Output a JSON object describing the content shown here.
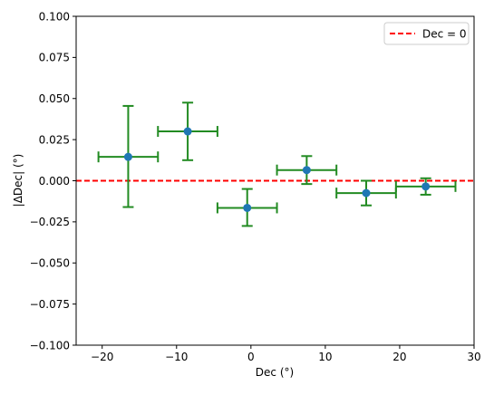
{
  "chart_data": {
    "type": "scatter",
    "title": "",
    "xlabel": "Dec (°)",
    "ylabel": "|ΔDec| (°)",
    "xlim": [
      -23.5,
      30
    ],
    "ylim": [
      -0.1,
      0.1
    ],
    "xticks": [
      -20,
      -10,
      0,
      10,
      20,
      30
    ],
    "xtick_labels": [
      "−20",
      "−10",
      "0",
      "10",
      "20",
      "30"
    ],
    "yticks": [
      -0.1,
      -0.075,
      -0.05,
      -0.025,
      0.0,
      0.025,
      0.05,
      0.075,
      0.1
    ],
    "ytick_labels": [
      "−0.100",
      "−0.075",
      "−0.050",
      "−0.025",
      "0.000",
      "0.025",
      "0.050",
      "0.075",
      "0.100"
    ],
    "grid": false,
    "legend": {
      "location": "upper right",
      "entries": [
        "Dec = 0"
      ]
    },
    "reference_line": {
      "y": 0,
      "label": "Dec = 0",
      "color": "#ff0000",
      "style": "dashed"
    },
    "series": [
      {
        "marker_color": "#1f77b4",
        "errorbar_color": "#228b22",
        "points": [
          {
            "x": -16.5,
            "y": 0.0145,
            "xerr": 4.0,
            "yerr_low": 0.0305,
            "yerr_high": 0.031
          },
          {
            "x": -8.5,
            "y": 0.03,
            "xerr": 4.0,
            "yerr_low": 0.0175,
            "yerr_high": 0.0175
          },
          {
            "x": -0.5,
            "y": -0.0165,
            "xerr": 4.0,
            "yerr_low": 0.011,
            "yerr_high": 0.0115
          },
          {
            "x": 7.5,
            "y": 0.0065,
            "xerr": 4.0,
            "yerr_low": 0.0085,
            "yerr_high": 0.0085
          },
          {
            "x": 15.5,
            "y": -0.0075,
            "xerr": 4.0,
            "yerr_low": 0.0075,
            "yerr_high": 0.0075
          },
          {
            "x": 23.5,
            "y": -0.0035,
            "xerr": 4.0,
            "yerr_low": 0.005,
            "yerr_high": 0.005
          }
        ]
      }
    ]
  }
}
